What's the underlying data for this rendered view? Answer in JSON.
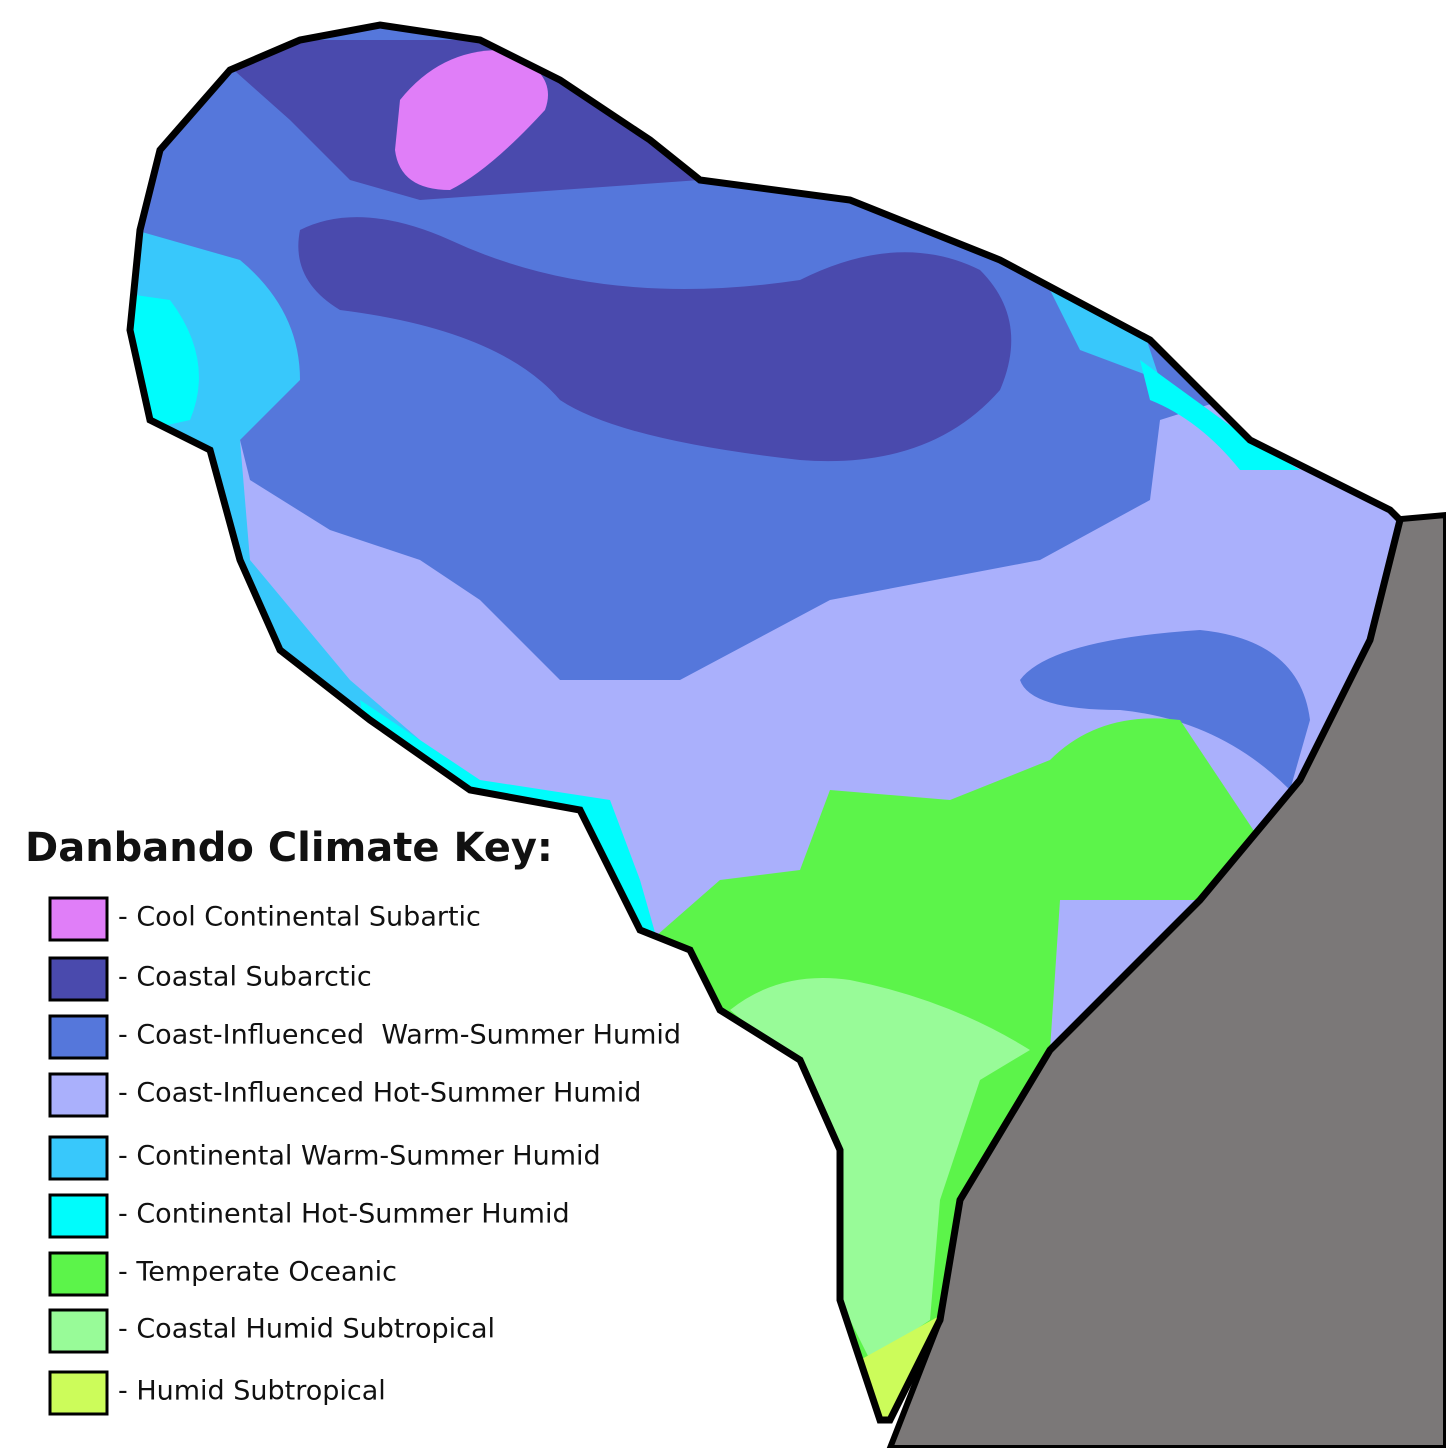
{
  "title": "Danbando Climate Key:",
  "legend": [
    {
      "label": "- Cool Continental Subartic",
      "color": "#e07ef8"
    },
    {
      "label": "- Coastal Subarctic",
      "color": "#4a4aad"
    },
    {
      "label": "- Coast-Influenced  Warm-Summer Humid",
      "color": "#5577db"
    },
    {
      "label": "- Coast-Influenced Hot-Summer Humid",
      "color": "#aab0fc"
    },
    {
      "label": "- Continental Warm-Summer Humid",
      "color": "#38c8fb"
    },
    {
      "label": "- Continental Hot-Summer Humid",
      "color": "#00fcfc"
    },
    {
      "label": "- Temperate Oceanic",
      "color": "#5cf44a"
    },
    {
      "label": "- Coastal Humid Subtropical",
      "color": "#98fb98"
    },
    {
      "label": "- Humid Subtropical",
      "color": "#ccfc5a"
    }
  ]
}
